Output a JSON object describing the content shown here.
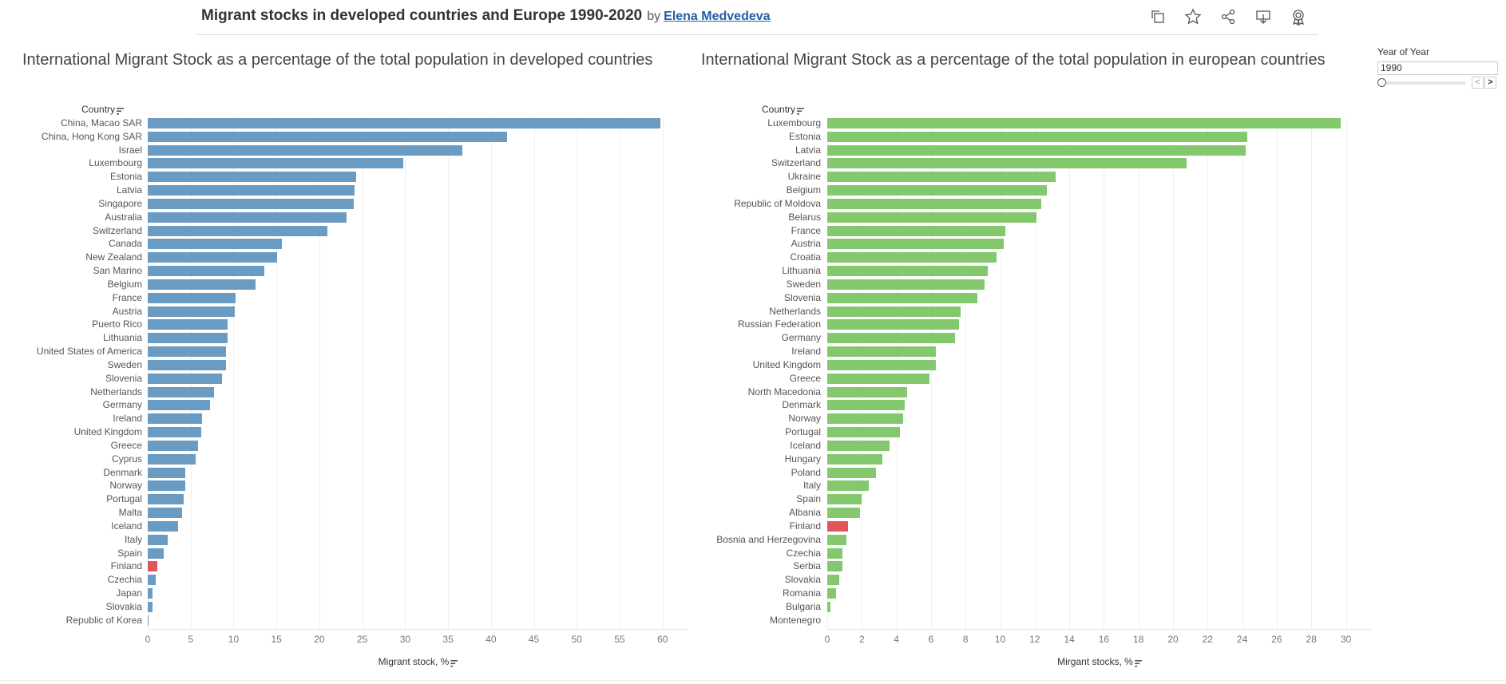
{
  "header": {
    "title": "Migrant stocks in developed countries and Europe 1990-2020",
    "by": "by",
    "author": "Elena Medvedeva",
    "icons": [
      "duplicate-icon",
      "star-icon",
      "share-icon",
      "download-icon",
      "badge-icon"
    ]
  },
  "filter": {
    "label": "Year of Year",
    "value": "1990",
    "prev": "<",
    "next": ">"
  },
  "colors": {
    "developed": "#6a9bc3",
    "europe": "#84c86e",
    "highlight": "#e15759"
  },
  "chart_data": [
    {
      "type": "bar",
      "orientation": "horizontal",
      "title": "International Migrant Stock as a percentage of the total population in developed countries",
      "category_header": "Country",
      "xlabel": "Migrant stock, %",
      "xlim": [
        0,
        63
      ],
      "ticks": [
        0,
        5,
        10,
        15,
        20,
        25,
        30,
        35,
        40,
        45,
        50,
        55,
        60
      ],
      "highlight": "Finland",
      "categories": [
        "China, Macao SAR",
        "China, Hong Kong SAR",
        "Israel",
        "Luxembourg",
        "Estonia",
        "Latvia",
        "Singapore",
        "Australia",
        "Switzerland",
        "Canada",
        "New Zealand",
        "San Marino",
        "Belgium",
        "France",
        "Austria",
        "Puerto Rico",
        "Lithuania",
        "United States of America",
        "Sweden",
        "Slovenia",
        "Netherlands",
        "Germany",
        "Ireland",
        "United Kingdom",
        "Greece",
        "Cyprus",
        "Denmark",
        "Norway",
        "Portugal",
        "Malta",
        "Iceland",
        "Italy",
        "Spain",
        "Finland",
        "Czechia",
        "Japan",
        "Slovakia",
        "Republic of Korea"
      ],
      "values": [
        59.7,
        41.9,
        36.7,
        29.8,
        24.3,
        24.1,
        24.0,
        23.2,
        20.9,
        15.6,
        15.1,
        13.6,
        12.6,
        10.2,
        10.1,
        9.3,
        9.3,
        9.1,
        9.1,
        8.7,
        7.7,
        7.3,
        6.3,
        6.2,
        5.9,
        5.6,
        4.4,
        4.4,
        4.2,
        4.0,
        3.5,
        2.3,
        1.9,
        1.1,
        0.9,
        0.6,
        0.6,
        0.1
      ]
    },
    {
      "type": "bar",
      "orientation": "horizontal",
      "title": "International Migrant Stock as a percentage of the total population  in european countries",
      "category_header": "Country",
      "xlabel": "Mirgant stocks, %",
      "xlim": [
        0,
        31.5
      ],
      "ticks": [
        0,
        2,
        4,
        6,
        8,
        10,
        12,
        14,
        16,
        18,
        20,
        22,
        24,
        26,
        28,
        30
      ],
      "highlight": "Finland",
      "categories": [
        "Luxembourg",
        "Estonia",
        "Latvia",
        "Switzerland",
        "Ukraine",
        "Belgium",
        "Republic of Moldova",
        "Belarus",
        "France",
        "Austria",
        "Croatia",
        "Lithuania",
        "Sweden",
        "Slovenia",
        "Netherlands",
        "Russian Federation",
        "Germany",
        "Ireland",
        "United Kingdom",
        "Greece",
        "North Macedonia",
        "Denmark",
        "Norway",
        "Portugal",
        "Iceland",
        "Hungary",
        "Poland",
        "Italy",
        "Spain",
        "Albania",
        "Finland",
        "Bosnia and Herzegovina",
        "Czechia",
        "Serbia",
        "Slovakia",
        "Romania",
        "Bulgaria",
        "Montenegro"
      ],
      "values": [
        29.7,
        24.3,
        24.2,
        20.8,
        13.2,
        12.7,
        12.4,
        12.1,
        10.3,
        10.2,
        9.8,
        9.3,
        9.1,
        8.7,
        7.7,
        7.6,
        7.4,
        6.3,
        6.3,
        5.9,
        4.6,
        4.5,
        4.4,
        4.2,
        3.6,
        3.2,
        2.8,
        2.4,
        2.0,
        1.9,
        1.2,
        1.1,
        0.9,
        0.9,
        0.7,
        0.5,
        0.2,
        0.0
      ]
    }
  ]
}
